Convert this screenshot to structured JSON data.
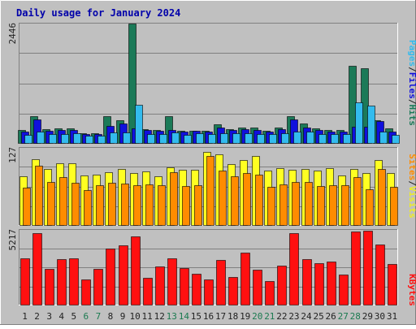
{
  "chart_data": {
    "type": "bar",
    "title": "Daily usage for January 2024",
    "categories": [
      "1",
      "2",
      "3",
      "4",
      "5",
      "6",
      "7",
      "8",
      "9",
      "10",
      "11",
      "12",
      "13",
      "14",
      "15",
      "16",
      "17",
      "18",
      "19",
      "20",
      "21",
      "22",
      "23",
      "24",
      "25",
      "26",
      "27",
      "28",
      "29",
      "30",
      "31"
    ],
    "weekend_days": [
      "6",
      "7",
      "13",
      "14",
      "20",
      "21",
      "27",
      "28"
    ],
    "axis_label_color": "#222222",
    "weekend_label_color": "#1b7a50",
    "panels": [
      {
        "id": "top",
        "ymax_label": "2446",
        "ylim": [
          0,
          2446
        ],
        "legend": [
          {
            "text": "Pages",
            "color": "#33bbee"
          },
          {
            "text": "/",
            "color": "#222222"
          },
          {
            "text": "Files",
            "color": "#1010dd"
          },
          {
            "text": "/",
            "color": "#222222"
          },
          {
            "text": "Hits",
            "color": "#1b7a58"
          }
        ],
        "series": [
          {
            "name": "Hits",
            "color": "#1b7a58",
            "values": [
              262,
              550,
              288,
              300,
              302,
              192,
              202,
              550,
              470,
              2446,
              290,
              268,
              550,
              255,
              255,
              255,
              388,
              285,
              313,
              312,
              257,
              308,
              548,
              400,
              298,
              265,
              263,
              1585,
              1530,
              460,
              300
            ]
          },
          {
            "name": "Files",
            "color": "#1010dd",
            "values": [
              230,
              478,
              255,
              270,
              268,
              178,
              182,
              355,
              400,
              300,
              270,
              242,
              270,
              225,
              245,
              235,
              315,
              265,
              283,
              262,
              232,
              278,
              480,
              320,
              258,
              232,
              228,
              340,
              340,
              450,
              240
            ]
          },
          {
            "name": "Pages",
            "color": "#33bbee",
            "values": [
              160,
              240,
              190,
              190,
              195,
              145,
              150,
              210,
              220,
              790,
              180,
              180,
              210,
              165,
              195,
              185,
              205,
              200,
              200,
              185,
              180,
              205,
              225,
              225,
              190,
              175,
              175,
              830,
              760,
              240,
              170
            ]
          }
        ]
      },
      {
        "id": "middle",
        "ymax_label": "127",
        "ylim": [
          0,
          127
        ],
        "legend": [
          {
            "text": "Sites",
            "color": "#ff8c00"
          },
          {
            "text": "/",
            "color": "#222222"
          },
          {
            "text": "Visits",
            "color": "#eeee22"
          }
        ],
        "series": [
          {
            "name": "Visits",
            "color": "#ffff22",
            "values": [
              80,
              108,
              92,
              102,
              102,
              82,
              83,
              87,
              92,
              86,
              88,
              80,
              95,
              91,
              91,
              120,
              116,
              100,
              107,
              114,
              90,
              94,
              91,
              92,
              90,
              93,
              82,
              92,
              85,
              107,
              85
            ]
          },
          {
            "name": "Sites",
            "color": "#ff8c00",
            "values": [
              62,
              98,
              71,
              79,
              69,
              57,
              66,
              70,
              68,
              66,
              67,
              65,
              87,
              64,
              66,
              113,
              90,
              80,
              85,
              83,
              63,
              67,
              71,
              71,
              64,
              66,
              66,
              79,
              59,
              92,
              63
            ]
          }
        ]
      },
      {
        "id": "bottom",
        "ymax_label": "5217",
        "ylim": [
          0,
          5217
        ],
        "legend": [
          {
            "text": "KBytes",
            "color": "#ff1010"
          }
        ],
        "series": [
          {
            "name": "KBytes",
            "color": "#ff1010",
            "values": [
              3240,
              5000,
              2470,
              3150,
              3240,
              1740,
              2470,
              3900,
              4120,
              4780,
              1860,
              2690,
              3240,
              2530,
              2170,
              1740,
              3100,
              1900,
              3620,
              2420,
              1630,
              2700,
              5000,
              3150,
              2890,
              2980,
              2090,
              5130,
              5180,
              4200,
              2830
            ]
          }
        ]
      }
    ]
  }
}
